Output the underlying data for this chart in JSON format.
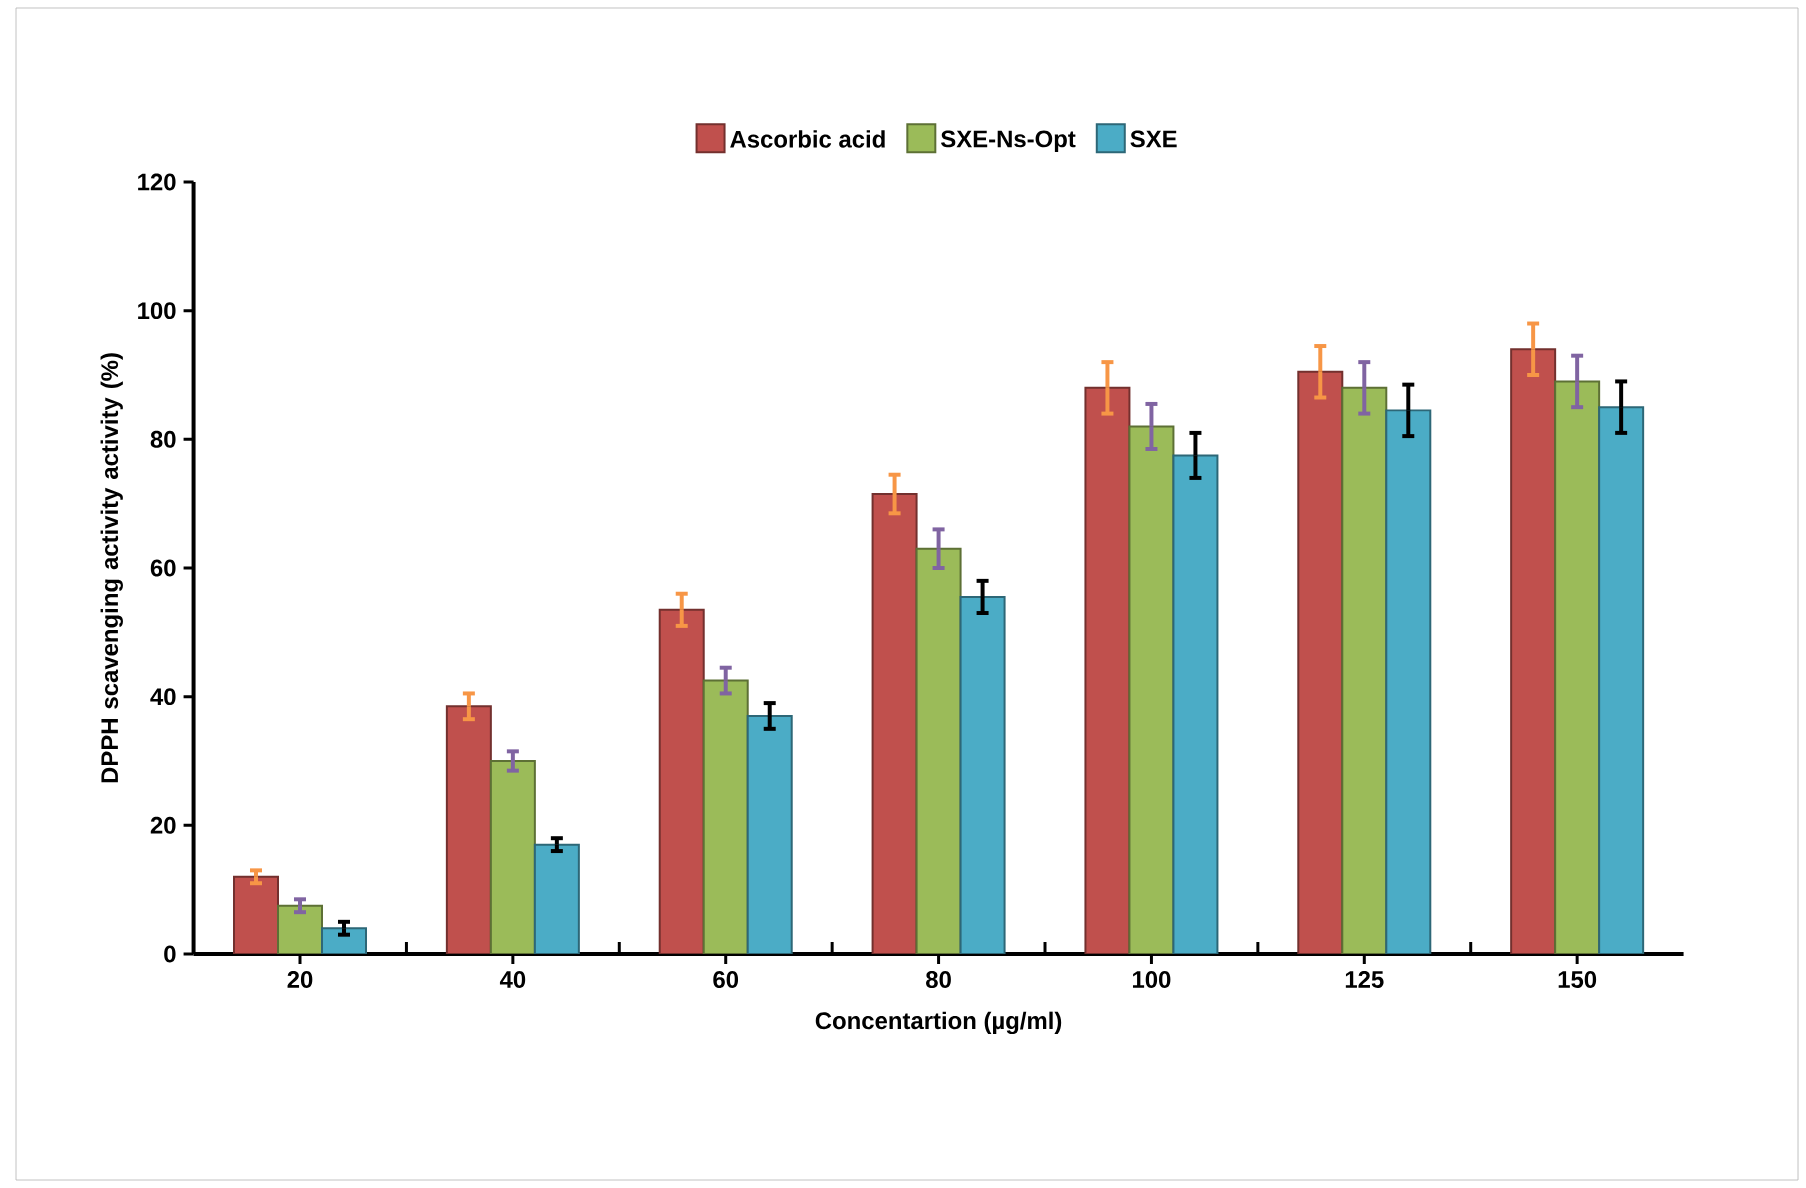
{
  "chart_data": {
    "type": "bar",
    "xlabel": "Concentartion (µg/ml)",
    "ylabel": "DPPH scavenging activity activity (%)",
    "categories": [
      "20",
      "40",
      "60",
      "80",
      "100",
      "125",
      "150"
    ],
    "series": [
      {
        "name": "Ascorbic acid",
        "color": "#c0504d",
        "values": [
          12,
          38.5,
          53.5,
          71.5,
          88,
          90.5,
          94
        ],
        "errors": [
          1,
          2,
          2.5,
          3,
          4,
          4,
          4
        ]
      },
      {
        "name": "SXE-Ns-Opt",
        "color": "#9bbb59",
        "values": [
          7.5,
          30,
          42.5,
          63,
          82,
          88,
          89
        ],
        "errors": [
          1,
          1.5,
          2,
          3,
          3.5,
          4,
          4
        ]
      },
      {
        "name": "SXE",
        "color": "#4bacc6",
        "values": [
          4,
          17,
          37,
          55.5,
          77.5,
          84.5,
          85
        ],
        "errors": [
          1,
          1,
          2,
          2.5,
          3.5,
          4,
          4
        ]
      }
    ],
    "ylim": [
      0,
      120
    ],
    "yticks": [
      0,
      20,
      40,
      60,
      80,
      100,
      120
    ],
    "grid": false,
    "legend": "top"
  }
}
